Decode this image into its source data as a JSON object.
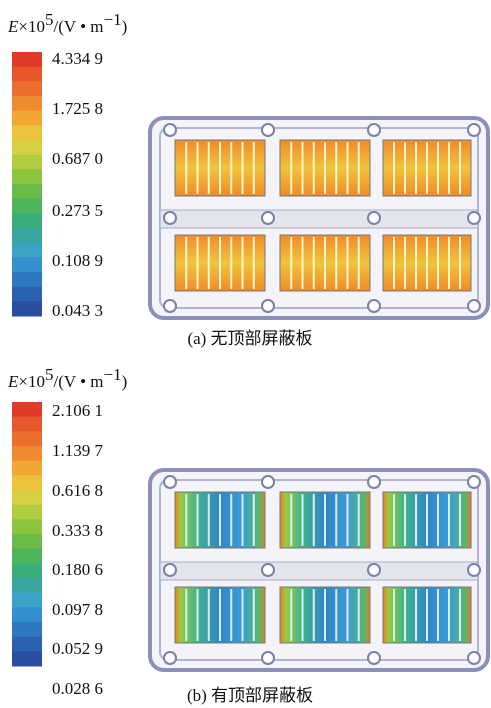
{
  "panels": [
    {
      "unit": {
        "symbol": "E",
        "times": "×10",
        "exp": "5",
        "rest": "/(V • m",
        "unit_exp": "−1",
        "close": ")"
      },
      "colorbar_labels": [
        "4.334 9",
        "1.725 8",
        "0.687 0",
        "0.273 5",
        "0.108 9",
        "0.043 3"
      ],
      "caption": "(a)  无顶部屏蔽板"
    },
    {
      "unit": {
        "symbol": "E",
        "times": "×10",
        "exp": "5",
        "rest": "/(V • m",
        "unit_exp": "−1",
        "close": ")"
      },
      "colorbar_labels": [
        "2.106 1",
        "1.139 7",
        "0.616 8",
        "0.333 8",
        "0.180 6",
        "0.097 8",
        "0.052 9",
        "0.028 6"
      ],
      "caption": "(b)  有顶部屏蔽板"
    }
  ]
}
